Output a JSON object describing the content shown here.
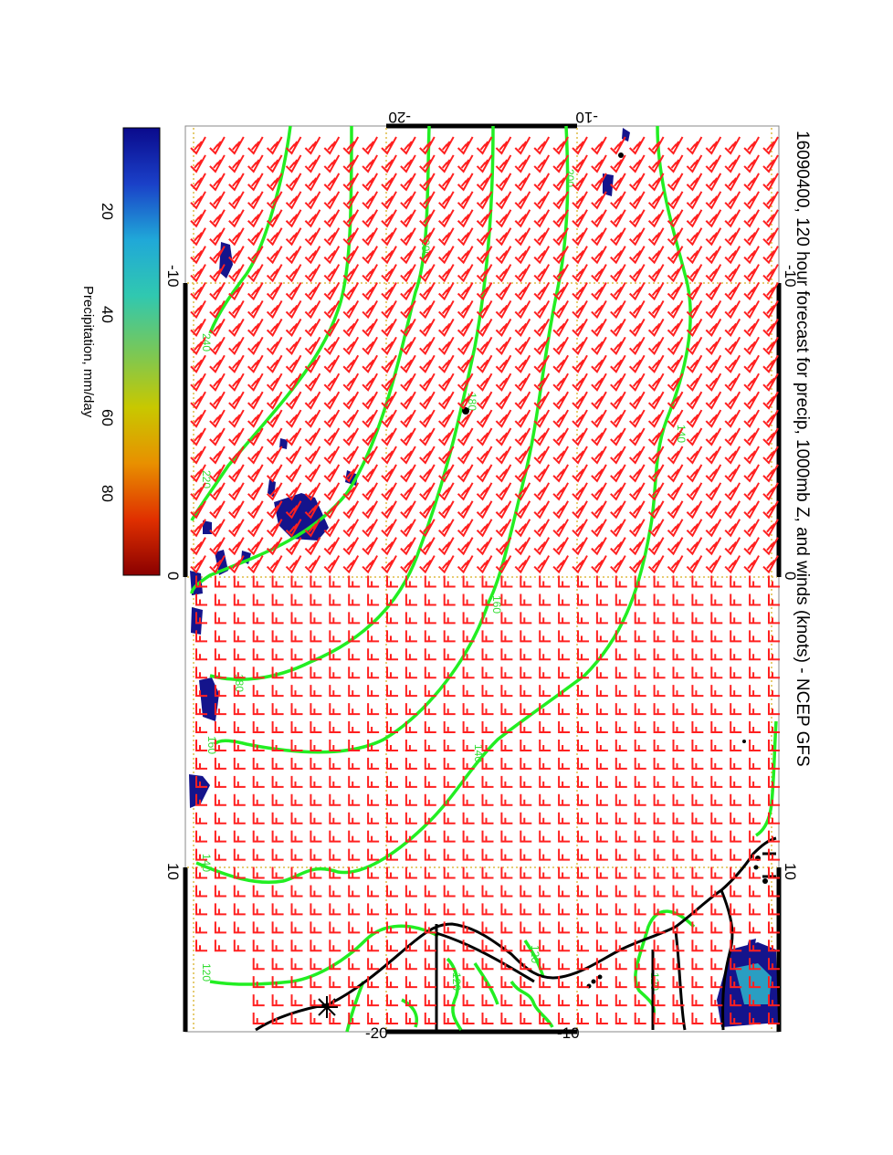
{
  "title": "16090400, 120 hour forecast for precip, 1000mb Z, and winds (knots) - NCEP GFS",
  "colorbar": {
    "label": "Precipitation, mm/day",
    "ticks": [
      "20",
      "40",
      "60",
      "80"
    ],
    "colors": [
      "#0a0a8c",
      "#1a40c8",
      "#20a8d8",
      "#30c8b0",
      "#78c858",
      "#c8c800",
      "#e89000",
      "#e03000",
      "#8a0000"
    ]
  },
  "axes": {
    "top_ticks": [
      "-20",
      "-10"
    ],
    "bottom_ticks": [
      "-20",
      "-10"
    ],
    "left_ticks": [
      "-10",
      "0",
      "10"
    ],
    "right_ticks": [
      "-10",
      "0",
      "10"
    ]
  },
  "contour_labels": [
    "240",
    "220",
    "200",
    "200",
    "180",
    "180",
    "160",
    "160",
    "140",
    "140",
    "140",
    "120",
    "120",
    "120",
    "120"
  ],
  "colors": {
    "contour": "#22ee22",
    "barb": "#ff2020",
    "coast": "#000000",
    "grid": "#ddbb44",
    "precip": "#14148c"
  }
}
